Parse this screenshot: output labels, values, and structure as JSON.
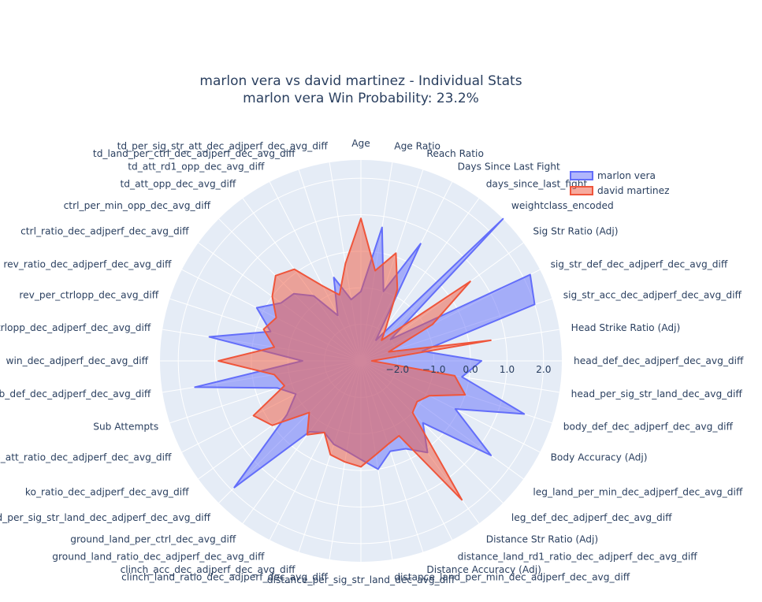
{
  "chart_data": {
    "type": "radar",
    "title": "marlon vera vs david martinez - Individual Stats",
    "subtitle": "marlon vera Win Probability: 23.2%",
    "radial_range": [
      -3,
      2.5
    ],
    "radial_ticks": [
      "−2.0",
      "−1.0",
      "0.0",
      "1.0",
      "2.0"
    ],
    "legend_position": "top-right",
    "categories": [
      "head_def_dec_adjperf_dec_avg_diff",
      "Head Strike Ratio (Adj)",
      "sig_str_acc_dec_adjperf_dec_avg_diff",
      "sig_str_def_dec_adjperf_dec_avg_diff",
      "Sig Str Ratio (Adj)",
      "weightclass_encoded",
      "days_since_last_fight",
      "Days Since Last Fight",
      "Reach Ratio",
      "Age Ratio",
      "Age",
      "td_per_sig_str_att_dec_adjperf_dec_avg_diff",
      "td_land_per_ctrl_dec_adjperf_dec_avg_diff",
      "td_att_rd1_opp_dec_avg_diff",
      "td_att_opp_dec_avg_diff",
      "ctrl_per_min_opp_dec_avg_diff",
      "ctrl_ratio_dec_adjperf_dec_avg_diff",
      "rev_ratio_dec_adjperf_dec_avg_diff",
      "rev_per_ctrlopp_dec_avg_diff",
      "rev_per_ctrlopp_dec_adjperf_dec_avg_diff",
      "win_dec_adjperf_dec_avg_diff",
      "sub_def_dec_adjperf_dec_avg_diff",
      "Sub Attempts",
      "sub_att_ratio_dec_adjperf_dec_avg_diff",
      "ko_ratio_dec_adjperf_dec_avg_diff",
      "ground_per_sig_str_land_dec_adjperf_dec_avg_diff",
      "ground_land_per_ctrl_dec_avg_diff",
      "ground_land_ratio_dec_adjperf_dec_avg_diff",
      "clinch_acc_dec_adjperf_dec_avg_diff",
      "clinch_land_ratio_dec_adjperf_dec_avg_diff",
      "distance_per_sig_str_land_dec_avg_diff",
      "distance_land_per_min_dec_adjperf_dec_avg_diff",
      "Distance Accuracy (Adj)",
      "distance_land_rd1_ratio_dec_adjperf_dec_avg_diff",
      "Distance Str Ratio (Adj)",
      "leg_def_dec_adjperf_dec_avg_diff",
      "leg_land_per_min_dec_adjperf_dec_avg_diff",
      "Body Accuracy (Adj)",
      "body_def_dec_adjperf_dec_avg_diff",
      "head_per_sig_str_land_dec_avg_diff"
    ],
    "series": [
      {
        "name": "marlon vera",
        "color": "#636efa",
        "values": [
          0.3,
          -1.3,
          2.0,
          2.2,
          -2.0,
          3.0,
          -2.3,
          0.6,
          -1.0,
          0.7,
          -1.1,
          -1.3,
          -0.6,
          -1.6,
          -0.8,
          -0.4,
          -0.3,
          0.2,
          -0.4,
          1.2,
          -1.4,
          1.6,
          -0.6,
          -1.0,
          -0.5,
          1.9,
          -0.6,
          -0.8,
          -0.6,
          -0.5,
          -0.3,
          0.0,
          -0.4,
          -0.3,
          0.1,
          -0.6,
          1.4,
          -0.1,
          1.7,
          -0.2
        ]
      },
      {
        "name": "david martinez",
        "color": "#ef553b",
        "values": [
          -2.7,
          0.6,
          -2.2,
          -0.8,
          0.7,
          -2.2,
          -1.8,
          -0.8,
          0.1,
          -0.5,
          0.9,
          -0.3,
          -1.1,
          -0.7,
          0.1,
          0.3,
          0.0,
          -0.4,
          -0.2,
          -0.6,
          0.9,
          -0.6,
          -0.8,
          0.3,
          0.0,
          -1.0,
          -0.5,
          -0.8,
          -0.3,
          -0.2,
          -0.1,
          -0.4,
          -0.6,
          -0.7,
          1.7,
          -1.0,
          -1.1,
          -0.9,
          0.0,
          -0.4
        ]
      }
    ]
  }
}
